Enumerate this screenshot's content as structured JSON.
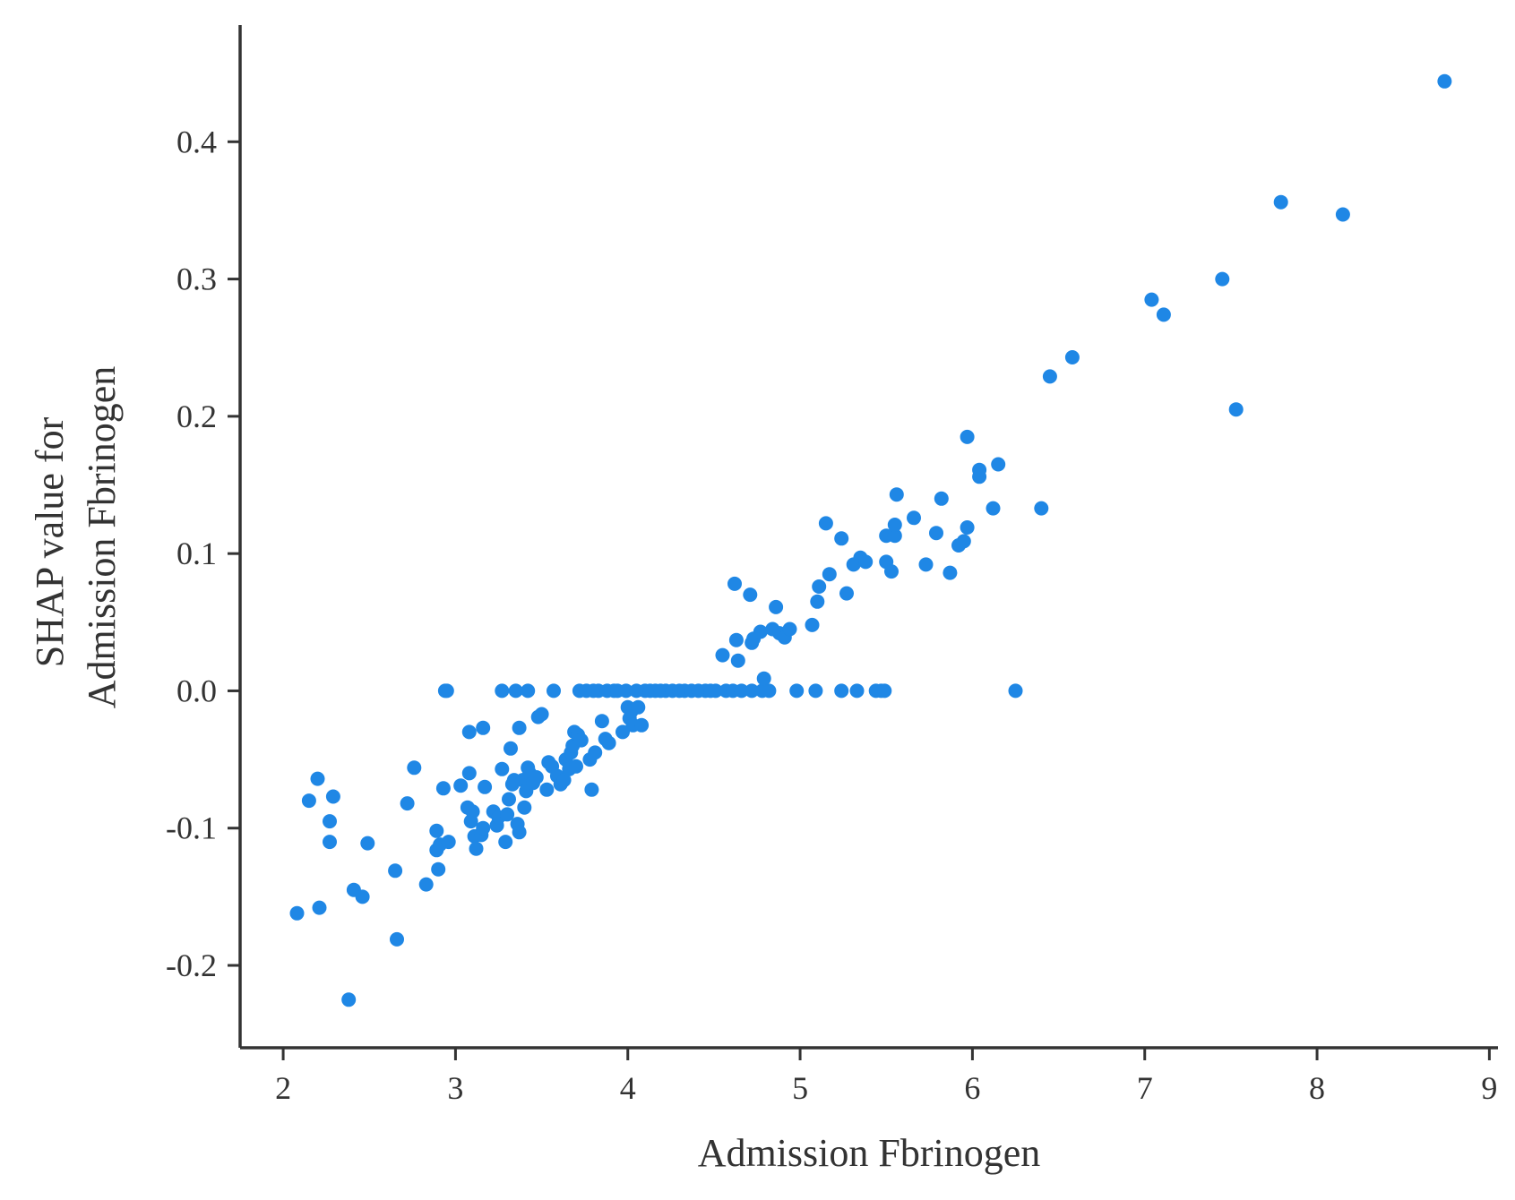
{
  "chart_data": {
    "type": "scatter",
    "title": "",
    "xlabel": "Admission Fbrinogen",
    "ylabel_lines": [
      "SHAP value for",
      "Admission Fbrinogen"
    ],
    "xlim": [
      1.75,
      9.05
    ],
    "ylim": [
      -0.26,
      0.485
    ],
    "x_ticks": [
      2,
      3,
      4,
      5,
      6,
      7,
      8,
      9
    ],
    "x_tick_labels": [
      "2",
      "3",
      "4",
      "5",
      "6",
      "7",
      "8",
      "9"
    ],
    "y_ticks": [
      -0.2,
      -0.1,
      0.0,
      0.1,
      0.2,
      0.3,
      0.4
    ],
    "y_tick_labels": [
      "-0.2",
      "-0.1",
      "0.0",
      "0.1",
      "0.2",
      "0.3",
      "0.4"
    ],
    "grid": false,
    "legend": "none",
    "point_color": "#1f87e5",
    "series": [
      {
        "points": [
          [
            2.08,
            -0.162
          ],
          [
            2.15,
            -0.08
          ],
          [
            2.2,
            -0.064
          ],
          [
            2.21,
            -0.158
          ],
          [
            2.27,
            -0.095
          ],
          [
            2.27,
            -0.11
          ],
          [
            2.29,
            -0.077
          ],
          [
            2.38,
            -0.225
          ],
          [
            2.41,
            -0.145
          ],
          [
            2.46,
            -0.15
          ],
          [
            2.49,
            -0.111
          ],
          [
            2.65,
            -0.131
          ],
          [
            2.66,
            -0.181
          ],
          [
            2.72,
            -0.082
          ],
          [
            2.76,
            -0.056
          ],
          [
            2.83,
            -0.141
          ],
          [
            2.89,
            -0.102
          ],
          [
            2.89,
            -0.116
          ],
          [
            2.9,
            -0.13
          ],
          [
            2.91,
            -0.112
          ],
          [
            2.93,
            -0.071
          ],
          [
            2.94,
            0.0
          ],
          [
            2.95,
            0.0
          ],
          [
            2.96,
            -0.11
          ],
          [
            3.03,
            -0.069
          ],
          [
            3.07,
            -0.085
          ],
          [
            3.08,
            -0.03
          ],
          [
            3.08,
            -0.06
          ],
          [
            3.09,
            -0.095
          ],
          [
            3.1,
            -0.088
          ],
          [
            3.11,
            -0.106
          ],
          [
            3.12,
            -0.115
          ],
          [
            3.15,
            -0.105
          ],
          [
            3.16,
            -0.1
          ],
          [
            3.16,
            -0.027
          ],
          [
            3.17,
            -0.07
          ],
          [
            3.22,
            -0.088
          ],
          [
            3.24,
            -0.098
          ],
          [
            3.25,
            -0.092
          ],
          [
            3.27,
            -0.057
          ],
          [
            3.27,
            0.0
          ],
          [
            3.29,
            -0.11
          ],
          [
            3.3,
            -0.09
          ],
          [
            3.31,
            -0.079
          ],
          [
            3.32,
            -0.042
          ],
          [
            3.33,
            -0.068
          ],
          [
            3.34,
            -0.065
          ],
          [
            3.35,
            0.0
          ],
          [
            3.36,
            -0.097
          ],
          [
            3.37,
            -0.103
          ],
          [
            3.37,
            -0.027
          ],
          [
            3.39,
            -0.065
          ],
          [
            3.4,
            -0.085
          ],
          [
            3.41,
            -0.073
          ],
          [
            3.42,
            0.0
          ],
          [
            3.42,
            -0.056
          ],
          [
            3.43,
            -0.06
          ],
          [
            3.45,
            -0.067
          ],
          [
            3.47,
            -0.063
          ],
          [
            3.48,
            -0.019
          ],
          [
            3.5,
            -0.017
          ],
          [
            3.53,
            -0.072
          ],
          [
            3.54,
            -0.052
          ],
          [
            3.56,
            -0.055
          ],
          [
            3.57,
            0.0
          ],
          [
            3.59,
            -0.062
          ],
          [
            3.61,
            -0.068
          ],
          [
            3.63,
            -0.065
          ],
          [
            3.64,
            -0.05
          ],
          [
            3.66,
            -0.057
          ],
          [
            3.67,
            -0.045
          ],
          [
            3.68,
            -0.04
          ],
          [
            3.69,
            -0.03
          ],
          [
            3.7,
            -0.055
          ],
          [
            3.71,
            -0.032
          ],
          [
            3.72,
            0.0
          ],
          [
            3.73,
            -0.036
          ],
          [
            3.76,
            0.0
          ],
          [
            3.78,
            -0.05
          ],
          [
            3.79,
            -0.072
          ],
          [
            3.8,
            0.0
          ],
          [
            3.81,
            -0.045
          ],
          [
            3.83,
            0.0
          ],
          [
            3.85,
            -0.022
          ],
          [
            3.87,
            -0.035
          ],
          [
            3.88,
            0.0
          ],
          [
            3.89,
            -0.038
          ],
          [
            3.92,
            0.0
          ],
          [
            3.94,
            0.0
          ],
          [
            3.97,
            -0.03
          ],
          [
            3.99,
            0.0
          ],
          [
            4.0,
            -0.012
          ],
          [
            4.01,
            -0.02
          ],
          [
            4.02,
            -0.015
          ],
          [
            4.03,
            -0.025
          ],
          [
            4.05,
            0.0
          ],
          [
            4.06,
            -0.012
          ],
          [
            4.08,
            -0.025
          ],
          [
            4.1,
            0.0
          ],
          [
            4.13,
            0.0
          ],
          [
            4.16,
            0.0
          ],
          [
            4.19,
            0.0
          ],
          [
            4.22,
            0.0
          ],
          [
            4.26,
            0.0
          ],
          [
            4.3,
            0.0
          ],
          [
            4.33,
            0.0
          ],
          [
            4.37,
            0.0
          ],
          [
            4.41,
            0.0
          ],
          [
            4.45,
            0.0
          ],
          [
            4.48,
            0.0
          ],
          [
            4.51,
            0.0
          ],
          [
            4.55,
            0.026
          ],
          [
            4.57,
            0.0
          ],
          [
            4.61,
            0.0
          ],
          [
            4.62,
            0.078
          ],
          [
            4.63,
            0.037
          ],
          [
            4.64,
            0.022
          ],
          [
            4.66,
            0.0
          ],
          [
            4.71,
            0.07
          ],
          [
            4.72,
            0.0
          ],
          [
            4.72,
            0.035
          ],
          [
            4.73,
            0.038
          ],
          [
            4.77,
            0.043
          ],
          [
            4.78,
            0.0
          ],
          [
            4.79,
            0.009
          ],
          [
            4.82,
            0.0
          ],
          [
            4.84,
            0.045
          ],
          [
            4.86,
            0.061
          ],
          [
            4.88,
            0.042
          ],
          [
            4.91,
            0.039
          ],
          [
            4.94,
            0.045
          ],
          [
            4.98,
            0.0
          ],
          [
            5.07,
            0.048
          ],
          [
            5.09,
            0.0
          ],
          [
            5.1,
            0.065
          ],
          [
            5.11,
            0.076
          ],
          [
            5.15,
            0.122
          ],
          [
            5.17,
            0.085
          ],
          [
            5.24,
            0.0
          ],
          [
            5.24,
            0.111
          ],
          [
            5.27,
            0.071
          ],
          [
            5.31,
            0.092
          ],
          [
            5.33,
            0.0
          ],
          [
            5.35,
            0.097
          ],
          [
            5.38,
            0.094
          ],
          [
            5.44,
            0.0
          ],
          [
            5.47,
            0.0
          ],
          [
            5.49,
            0.0
          ],
          [
            5.5,
            0.094
          ],
          [
            5.5,
            0.113
          ],
          [
            5.53,
            0.087
          ],
          [
            5.55,
            0.113
          ],
          [
            5.55,
            0.121
          ],
          [
            5.56,
            0.143
          ],
          [
            5.66,
            0.126
          ],
          [
            5.73,
            0.092
          ],
          [
            5.79,
            0.115
          ],
          [
            5.82,
            0.14
          ],
          [
            5.87,
            0.086
          ],
          [
            5.92,
            0.106
          ],
          [
            5.95,
            0.109
          ],
          [
            5.97,
            0.119
          ],
          [
            5.97,
            0.185
          ],
          [
            6.04,
            0.156
          ],
          [
            6.04,
            0.161
          ],
          [
            6.12,
            0.133
          ],
          [
            6.15,
            0.165
          ],
          [
            6.25,
            0.0
          ],
          [
            6.4,
            0.133
          ],
          [
            6.45,
            0.229
          ],
          [
            6.58,
            0.243
          ],
          [
            7.04,
            0.285
          ],
          [
            7.11,
            0.274
          ],
          [
            7.45,
            0.3
          ],
          [
            7.53,
            0.205
          ],
          [
            7.79,
            0.356
          ],
          [
            8.15,
            0.347
          ],
          [
            8.74,
            0.444
          ]
        ]
      }
    ]
  }
}
